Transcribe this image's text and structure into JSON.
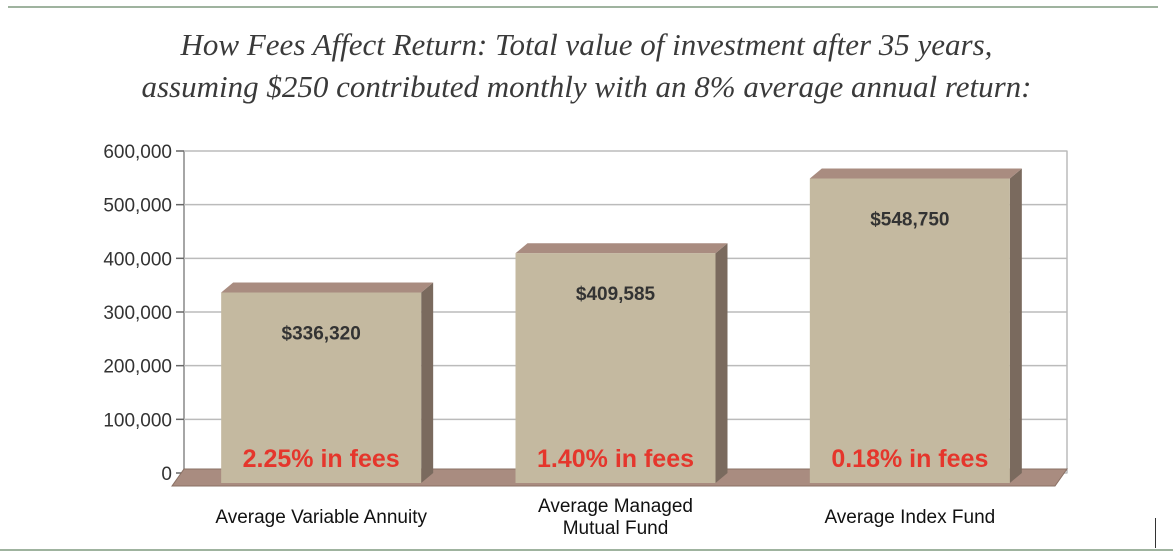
{
  "title_line1": "How Fees Affect Return:  Total value of investment after 35 years,",
  "title_line2": "assuming $250 contributed monthly with an 8% average annual return:",
  "chart_data": {
    "type": "bar",
    "categories": [
      [
        "Average Variable Annuity"
      ],
      [
        "Average Managed",
        "Mutual Fund"
      ],
      [
        "Average Index Fund"
      ]
    ],
    "values": [
      336320,
      409585,
      548750
    ],
    "value_labels": [
      "$336,320",
      "$409,585",
      "$548,750"
    ],
    "fee_labels": [
      "2.25% in fees",
      "1.40% in fees",
      "0.18% in fees"
    ],
    "ylim": [
      0,
      600000
    ],
    "yticks": [
      0,
      100000,
      200000,
      300000,
      400000,
      500000,
      600000
    ],
    "ytick_labels": [
      "0",
      "100,000",
      "200,000",
      "300,000",
      "400,000",
      "500,000",
      "600,000"
    ],
    "grid": true,
    "colors": {
      "bar_front": "#c4b9a0",
      "bar_top": "#a98c80",
      "bar_side": "#7a6a5e",
      "floor": "#a98c80",
      "grid": "#bbbbbb",
      "fee_text": "#e5362c"
    }
  }
}
